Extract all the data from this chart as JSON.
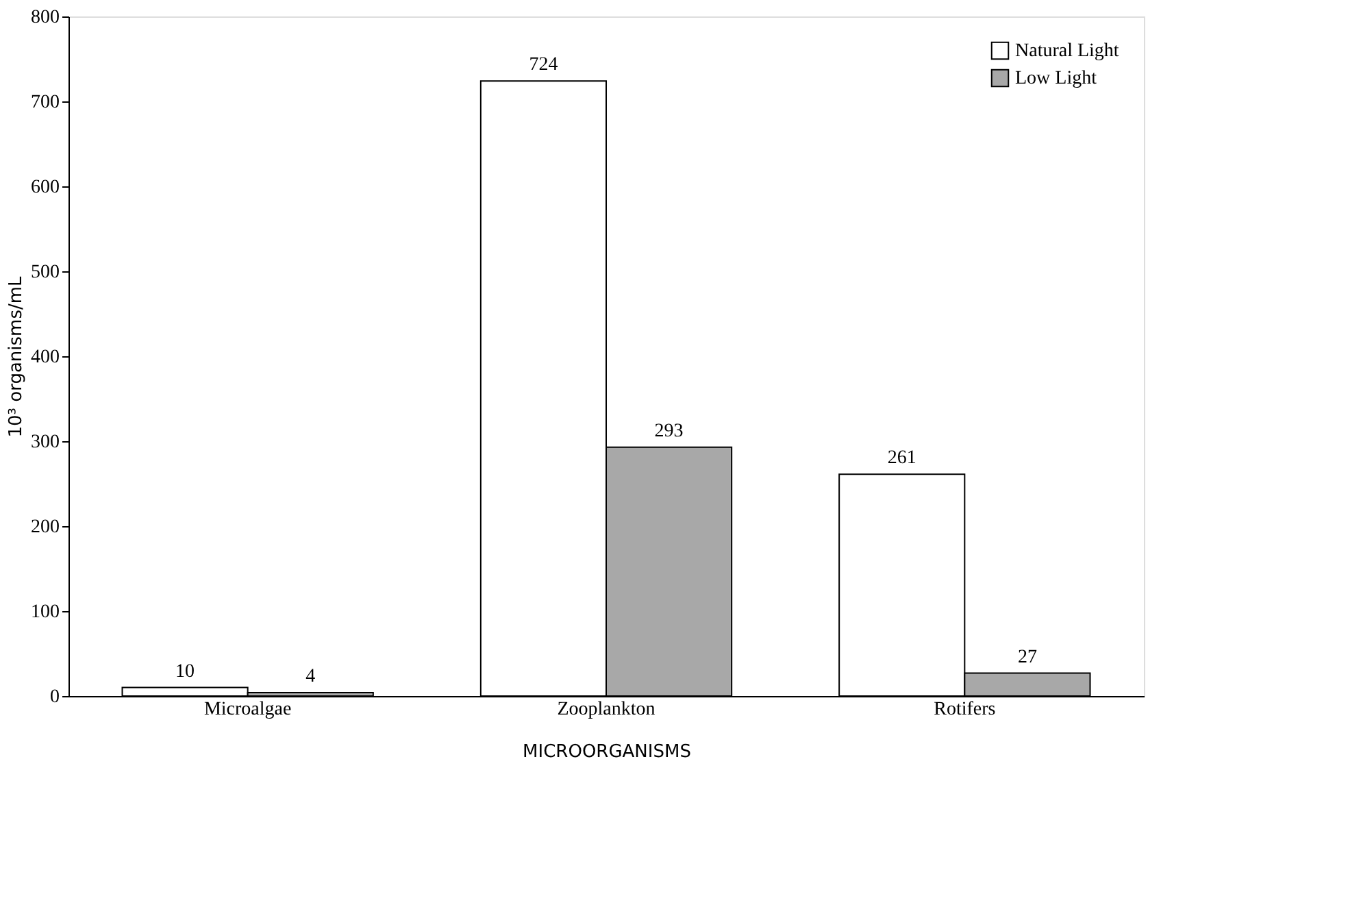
{
  "chart_data": {
    "type": "bar",
    "xlabel": "MICROORGANISMS",
    "ylabel": "10³ organisms/mL",
    "categories": [
      "Microalgae",
      "Zooplankton",
      "Rotifers"
    ],
    "series": [
      {
        "name": "Natural Light",
        "color": "#ffffff",
        "values": [
          10,
          724,
          261
        ]
      },
      {
        "name": "Low Light",
        "color": "#a8a8a8",
        "values": [
          4,
          293,
          27
        ]
      }
    ],
    "ylim": [
      0,
      800
    ],
    "yticks": [
      0,
      100,
      200,
      300,
      400,
      500,
      600,
      700,
      800
    ],
    "grid": false,
    "legend": "top right",
    "data_labels": true
  }
}
